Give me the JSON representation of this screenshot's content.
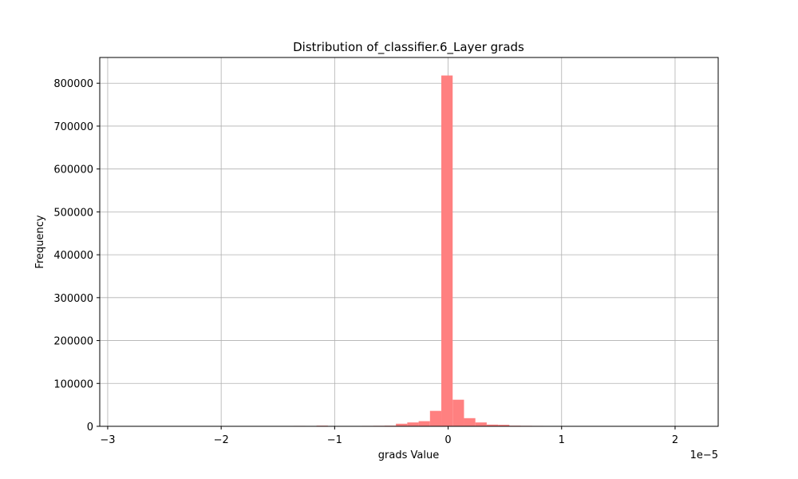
{
  "chart_data": {
    "type": "bar",
    "title": "Distribution of_classifier.6_Layer grads",
    "xlabel": "grads Value",
    "ylabel": "Frequency",
    "x_offset_label": "1e−5",
    "xlim": [
      -3.07,
      2.38
    ],
    "ylim": [
      0,
      860000
    ],
    "grid": true,
    "bar_color": "#ff8080",
    "x_ticks": [
      {
        "value": -3,
        "label": "−3"
      },
      {
        "value": -2,
        "label": "−2"
      },
      {
        "value": -1,
        "label": "−1"
      },
      {
        "value": 0,
        "label": "0"
      },
      {
        "value": 1,
        "label": "1"
      },
      {
        "value": 2,
        "label": "2"
      }
    ],
    "y_ticks": [
      {
        "value": 0,
        "label": "0"
      },
      {
        "value": 100000,
        "label": "100000"
      },
      {
        "value": 200000,
        "label": "200000"
      },
      {
        "value": 300000,
        "label": "300000"
      },
      {
        "value": 400000,
        "label": "400000"
      },
      {
        "value": 500000,
        "label": "500000"
      },
      {
        "value": 600000,
        "label": "600000"
      },
      {
        "value": 700000,
        "label": "700000"
      },
      {
        "value": 800000,
        "label": "800000"
      }
    ],
    "bins": [
      {
        "x0": -2.9,
        "x1": -2.8,
        "count": 0
      },
      {
        "x0": -1.36,
        "x1": -1.26,
        "count": 1000
      },
      {
        "x0": -1.16,
        "x1": -1.06,
        "count": 1500
      },
      {
        "x0": -0.96,
        "x1": -0.86,
        "count": 800
      },
      {
        "x0": -0.86,
        "x1": -0.76,
        "count": 900
      },
      {
        "x0": -0.76,
        "x1": -0.66,
        "count": 1000
      },
      {
        "x0": -0.66,
        "x1": -0.56,
        "count": 1200
      },
      {
        "x0": -0.56,
        "x1": -0.46,
        "count": 1500
      },
      {
        "x0": -0.46,
        "x1": -0.36,
        "count": 6000
      },
      {
        "x0": -0.36,
        "x1": -0.26,
        "count": 9000
      },
      {
        "x0": -0.26,
        "x1": -0.16,
        "count": 12000
      },
      {
        "x0": -0.16,
        "x1": -0.06,
        "count": 36000
      },
      {
        "x0": -0.06,
        "x1": 0.04,
        "count": 818000
      },
      {
        "x0": 0.04,
        "x1": 0.14,
        "count": 62000
      },
      {
        "x0": 0.14,
        "x1": 0.24,
        "count": 19000
      },
      {
        "x0": 0.24,
        "x1": 0.34,
        "count": 9000
      },
      {
        "x0": 0.34,
        "x1": 0.44,
        "count": 4000
      },
      {
        "x0": 0.44,
        "x1": 0.54,
        "count": 3500
      },
      {
        "x0": 0.54,
        "x1": 0.64,
        "count": 1500
      },
      {
        "x0": 0.64,
        "x1": 0.74,
        "count": 1200
      },
      {
        "x0": 0.74,
        "x1": 0.84,
        "count": 1000
      },
      {
        "x0": 0.84,
        "x1": 0.94,
        "count": 800
      },
      {
        "x0": 0.94,
        "x1": 1.04,
        "count": 700
      }
    ]
  }
}
